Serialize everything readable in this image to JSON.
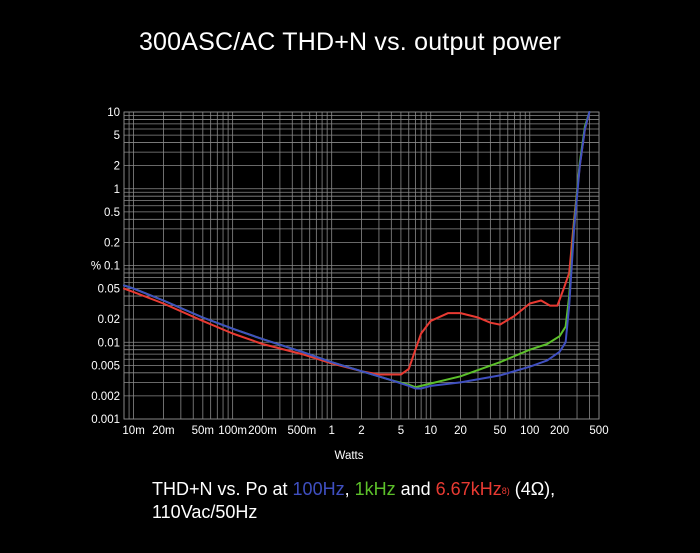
{
  "chart_data": {
    "type": "line",
    "title": "300ASC/AC THD+N vs. output power",
    "xlabel": "Watts",
    "ylabel": "%",
    "x_scale": "log",
    "y_scale": "log",
    "xlim": [
      0.008,
      500
    ],
    "ylim": [
      0.001,
      10
    ],
    "x_ticks": [
      0.01,
      0.02,
      0.05,
      0.1,
      0.2,
      0.5,
      1,
      2,
      5,
      10,
      20,
      50,
      100,
      200,
      500
    ],
    "x_tick_labels": [
      "10m",
      "20m",
      "50m",
      "100m",
      "200m",
      "500m",
      "1",
      "2",
      "5",
      "10",
      "20",
      "50",
      "100",
      "200",
      "500"
    ],
    "y_ticks": [
      0.001,
      0.002,
      0.005,
      0.01,
      0.02,
      0.05,
      0.1,
      0.2,
      0.5,
      1,
      2,
      5,
      10
    ],
    "y_tick_labels": [
      "0.001",
      "0.002",
      "0.005",
      "0.01",
      "0.02",
      "0.05",
      "0.1",
      "0.2",
      "0.5",
      "1",
      "2",
      "5",
      "10"
    ],
    "grid": true,
    "legend": "none",
    "series": [
      {
        "name": "100Hz",
        "color": "#3f4fc0",
        "x": [
          0.008,
          0.01,
          0.02,
          0.05,
          0.1,
          0.2,
          0.5,
          1,
          2,
          4,
          6,
          7,
          8,
          10,
          20,
          50,
          100,
          150,
          200,
          230,
          250,
          280,
          320,
          360,
          400
        ],
        "y": [
          0.055,
          0.05,
          0.035,
          0.021,
          0.015,
          0.011,
          0.0075,
          0.0055,
          0.0042,
          0.0032,
          0.0027,
          0.0025,
          0.0025,
          0.0027,
          0.003,
          0.0037,
          0.0048,
          0.0058,
          0.0075,
          0.01,
          0.03,
          0.3,
          2,
          6,
          10
        ]
      },
      {
        "name": "1kHz",
        "color": "#5cc02a",
        "x": [
          0.008,
          0.01,
          0.02,
          0.05,
          0.1,
          0.2,
          0.5,
          1,
          2,
          4,
          6,
          7,
          8,
          10,
          20,
          50,
          100,
          150,
          200,
          230,
          250,
          280,
          320,
          360,
          400
        ],
        "y": [
          0.055,
          0.05,
          0.035,
          0.021,
          0.015,
          0.011,
          0.0075,
          0.0055,
          0.0042,
          0.0032,
          0.0028,
          0.0026,
          0.0027,
          0.0029,
          0.0036,
          0.0055,
          0.008,
          0.0095,
          0.012,
          0.016,
          0.04,
          0.35,
          2.2,
          6.5,
          10
        ]
      },
      {
        "name": "6.67kHz",
        "color": "#e83a32",
        "x": [
          0.008,
          0.01,
          0.02,
          0.05,
          0.1,
          0.2,
          0.5,
          1,
          2,
          3,
          4,
          5,
          6,
          7,
          8,
          10,
          15,
          20,
          30,
          40,
          50,
          70,
          100,
          130,
          160,
          190,
          220,
          250,
          280,
          320,
          360,
          400
        ],
        "y": [
          0.05,
          0.045,
          0.032,
          0.019,
          0.013,
          0.0095,
          0.007,
          0.0053,
          0.0042,
          0.0038,
          0.0038,
          0.0038,
          0.0045,
          0.008,
          0.013,
          0.019,
          0.024,
          0.024,
          0.021,
          0.018,
          0.017,
          0.022,
          0.032,
          0.035,
          0.03,
          0.03,
          0.05,
          0.08,
          0.4,
          2,
          6,
          10
        ]
      }
    ]
  },
  "caption": {
    "line1_prefix": "THD+N vs. Po at ",
    "freq_100": "100Hz",
    "separator": ", ",
    "freq_1k": "1kHz",
    "and_text": " and ",
    "freq_667": "6.67kHz",
    "footnote": "8)",
    "load_text": " (4Ω),",
    "line2": "110Vac/50Hz"
  },
  "colors": {
    "background": "#000000",
    "grid": "#8a8a8a",
    "text": "#ffffff",
    "blue": "#3f4fc0",
    "green": "#5cc02a",
    "red": "#e83a32"
  }
}
